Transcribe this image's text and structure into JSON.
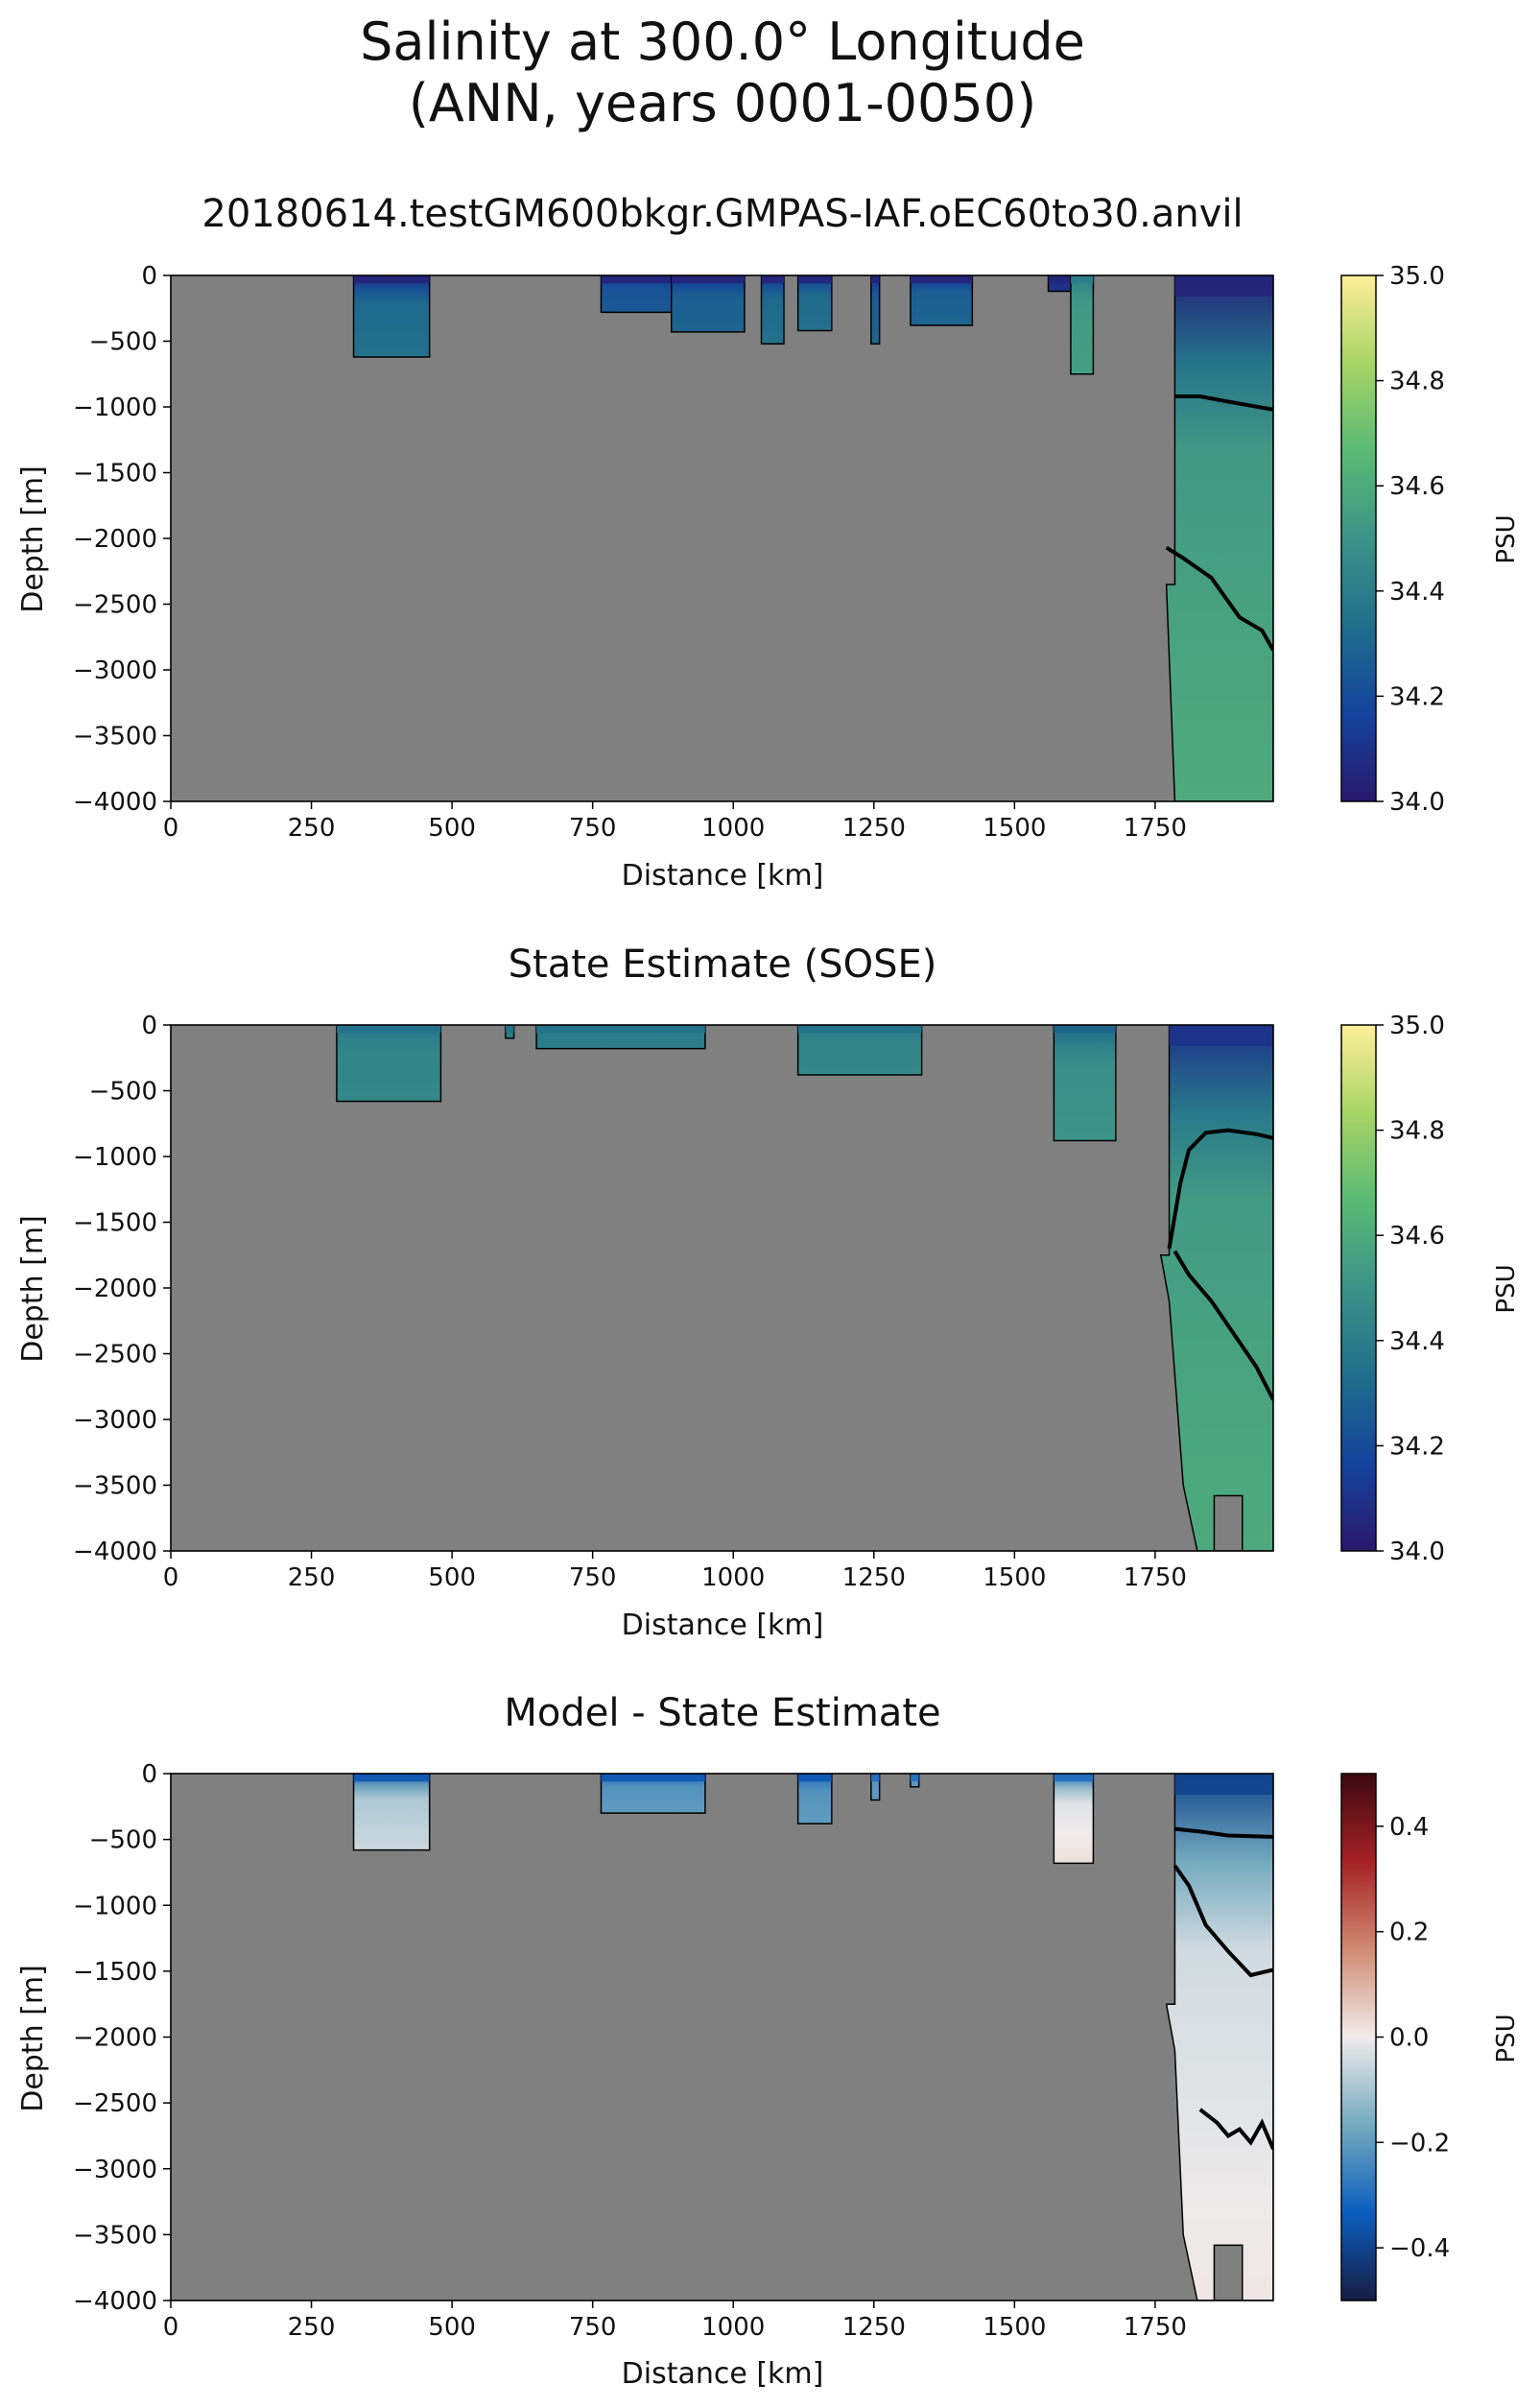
{
  "figure": {
    "title_line1": "Salinity at 300.0° Longitude",
    "title_line2": "(ANN, years 0001-0050)"
  },
  "chart_data": [
    {
      "type": "heatmap",
      "title": "20180614.testGM600bkgr.GMPAS-IAF.oEC60to30.anvil",
      "xlabel": "Distance [km]",
      "ylabel": "Depth [m]",
      "xlim": [
        0,
        1960
      ],
      "ylim": [
        -4000,
        0
      ],
      "xticks": [
        "0",
        "250",
        "500",
        "750",
        "1000",
        "1250",
        "1500",
        "1750"
      ],
      "yticks": [
        "0",
        "−500",
        "−1000",
        "−1500",
        "−2000",
        "−2500",
        "−3000",
        "−3500",
        "−4000"
      ],
      "colorbar": {
        "label": "PSU",
        "range": [
          34.0,
          35.0
        ],
        "ticks": [
          "34.0",
          "34.2",
          "34.4",
          "34.6",
          "34.8",
          "35.0"
        ],
        "colormap": "haline"
      },
      "land_color": "#808080",
      "ocean_regions": [
        {
          "x": [
            325,
            460
          ],
          "bottom": -620,
          "surface_psu": 34.05,
          "deep_psu": 34.35
        },
        {
          "x": [
            765,
            890
          ],
          "bottom": -280,
          "surface_psu": 34.05,
          "deep_psu": 34.25
        },
        {
          "x": [
            890,
            1020
          ],
          "bottom": -430,
          "surface_psu": 34.05,
          "deep_psu": 34.3
        },
        {
          "x": [
            1050,
            1090
          ],
          "bottom": -520,
          "surface_psu": 34.05,
          "deep_psu": 34.35
        },
        {
          "x": [
            1115,
            1175
          ],
          "bottom": -420,
          "surface_psu": 34.05,
          "deep_psu": 34.35
        },
        {
          "x": [
            1245,
            1260
          ],
          "bottom": -520,
          "surface_psu": 34.05,
          "deep_psu": 34.3
        },
        {
          "x": [
            1315,
            1425
          ],
          "bottom": -380,
          "surface_psu": 34.05,
          "deep_psu": 34.3
        },
        {
          "x": [
            1560,
            1640
          ],
          "bottom": -120,
          "surface_psu": 34.05,
          "deep_psu": 34.1
        },
        {
          "x": [
            1600,
            1640
          ],
          "bottom": -750,
          "surface_psu": 34.4,
          "deep_psu": 34.55
        },
        {
          "x": [
            1785,
            1960
          ],
          "bottom": -4000,
          "surface_psu": 34.05,
          "deep_psu": 34.6,
          "west_wall": [
            [
              1770,
              -2350
            ],
            [
              1785,
              -4000
            ]
          ]
        }
      ],
      "contours": [
        [
          [
            1785,
            -920
          ],
          [
            1830,
            -920
          ],
          [
            1880,
            -960
          ],
          [
            1960,
            -1020
          ]
        ],
        [
          [
            1770,
            -2070
          ],
          [
            1800,
            -2150
          ],
          [
            1850,
            -2300
          ],
          [
            1900,
            -2600
          ],
          [
            1940,
            -2700
          ],
          [
            1960,
            -2850
          ]
        ]
      ]
    },
    {
      "type": "heatmap",
      "title": "State Estimate (SOSE)",
      "xlabel": "Distance [km]",
      "ylabel": "Depth [m]",
      "xlim": [
        0,
        1960
      ],
      "ylim": [
        -4000,
        0
      ],
      "xticks": [
        "0",
        "250",
        "500",
        "750",
        "1000",
        "1250",
        "1500",
        "1750"
      ],
      "yticks": [
        "0",
        "−500",
        "−1000",
        "−1500",
        "−2000",
        "−2500",
        "−3000",
        "−3500",
        "−4000"
      ],
      "colorbar": {
        "label": "PSU",
        "range": [
          34.0,
          35.0
        ],
        "ticks": [
          "34.0",
          "34.2",
          "34.4",
          "34.6",
          "34.8",
          "35.0"
        ],
        "colormap": "haline"
      },
      "land_color": "#808080",
      "ocean_regions": [
        {
          "x": [
            295,
            480
          ],
          "bottom": -580,
          "surface_psu": 34.35,
          "deep_psu": 34.45
        },
        {
          "x": [
            595,
            610
          ],
          "bottom": -100,
          "surface_psu": 34.35,
          "deep_psu": 34.4
        },
        {
          "x": [
            650,
            950
          ],
          "bottom": -180,
          "surface_psu": 34.35,
          "deep_psu": 34.4
        },
        {
          "x": [
            1115,
            1335
          ],
          "bottom": -380,
          "surface_psu": 34.35,
          "deep_psu": 34.45
        },
        {
          "x": [
            1570,
            1680
          ],
          "bottom": -880,
          "surface_psu": 34.3,
          "deep_psu": 34.5
        },
        {
          "x": [
            1775,
            1960
          ],
          "bottom": -4000,
          "surface_psu": 34.1,
          "deep_psu": 34.6,
          "west_wall": [
            [
              1760,
              -1750
            ],
            [
              1775,
              -2100
            ],
            [
              1800,
              -3500
            ],
            [
              1825,
              -4000
            ]
          ]
        }
      ],
      "seamounts": [
        {
          "x": [
            1855,
            1905
          ],
          "top": -3580
        }
      ],
      "contours": [
        [
          [
            1775,
            -1700
          ],
          [
            1795,
            -1200
          ],
          [
            1810,
            -950
          ],
          [
            1840,
            -820
          ],
          [
            1880,
            -800
          ],
          [
            1930,
            -830
          ],
          [
            1960,
            -860
          ]
        ],
        [
          [
            1785,
            -1720
          ],
          [
            1810,
            -1900
          ],
          [
            1850,
            -2100
          ],
          [
            1890,
            -2350
          ],
          [
            1930,
            -2600
          ],
          [
            1960,
            -2850
          ]
        ]
      ]
    },
    {
      "type": "heatmap",
      "title": "Model - State Estimate",
      "xlabel": "Distance [km]",
      "ylabel": "Depth [m]",
      "xlim": [
        0,
        1960
      ],
      "ylim": [
        -4000,
        0
      ],
      "xticks": [
        "0",
        "250",
        "500",
        "750",
        "1000",
        "1250",
        "1500",
        "1750"
      ],
      "yticks": [
        "0",
        "−500",
        "−1000",
        "−1500",
        "−2000",
        "−2500",
        "−3000",
        "−3500",
        "−4000"
      ],
      "colorbar": {
        "label": "PSU",
        "range": [
          -0.5,
          0.5
        ],
        "ticks": [
          "−0.4",
          "−0.2",
          "0.0",
          "0.2",
          "0.4"
        ],
        "colormap": "balance"
      },
      "land_color": "#808080",
      "ocean_regions": [
        {
          "x": [
            325,
            460
          ],
          "bottom": -580,
          "surface_psu": -0.35,
          "deep_psu": -0.05
        },
        {
          "x": [
            765,
            950
          ],
          "bottom": -300,
          "surface_psu": -0.35,
          "deep_psu": -0.2
        },
        {
          "x": [
            1115,
            1175
          ],
          "bottom": -380,
          "surface_psu": -0.35,
          "deep_psu": -0.2
        },
        {
          "x": [
            1245,
            1260
          ],
          "bottom": -200,
          "surface_psu": -0.3,
          "deep_psu": -0.2
        },
        {
          "x": [
            1315,
            1330
          ],
          "bottom": -100,
          "surface_psu": -0.3,
          "deep_psu": -0.2
        },
        {
          "x": [
            1570,
            1640
          ],
          "bottom": -680,
          "surface_psu": -0.3,
          "deep_psu": 0.02
        },
        {
          "x": [
            1785,
            1960
          ],
          "bottom": -4000,
          "surface_psu": -0.4,
          "deep_psu": 0.01,
          "west_wall": [
            [
              1770,
              -1750
            ],
            [
              1785,
              -2100
            ],
            [
              1800,
              -3500
            ],
            [
              1825,
              -4000
            ]
          ]
        }
      ],
      "seamounts": [
        {
          "x": [
            1855,
            1905
          ],
          "top": -3580
        }
      ],
      "contours": [
        [
          [
            1785,
            -420
          ],
          [
            1830,
            -440
          ],
          [
            1880,
            -470
          ],
          [
            1960,
            -480
          ]
        ],
        [
          [
            1785,
            -700
          ],
          [
            1810,
            -850
          ],
          [
            1840,
            -1150
          ],
          [
            1880,
            -1350
          ],
          [
            1920,
            -1530
          ],
          [
            1960,
            -1490
          ]
        ],
        [
          [
            1830,
            -2550
          ],
          [
            1860,
            -2650
          ],
          [
            1880,
            -2750
          ],
          [
            1900,
            -2700
          ],
          [
            1920,
            -2800
          ],
          [
            1940,
            -2650
          ],
          [
            1960,
            -2850
          ]
        ]
      ]
    }
  ]
}
